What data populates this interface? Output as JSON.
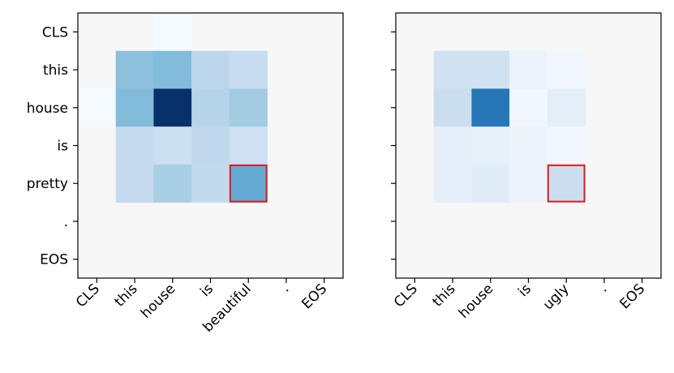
{
  "chart_data": [
    {
      "type": "heatmap",
      "title": "",
      "xlabel": "",
      "ylabel": "",
      "x_tick_labels": [
        "CLS",
        "this",
        "house",
        "is",
        "beautiful",
        ".",
        "EOS"
      ],
      "y_tick_labels": [
        "CLS",
        "this",
        "house",
        "is",
        "pretty",
        ".",
        "EOS"
      ],
      "colormap": "Blues",
      "background_color": "#f7f7f7",
      "values": [
        [
          0.0,
          0.0,
          0.01,
          0.0,
          0.0,
          0.0,
          0.0
        ],
        [
          0.0,
          0.42,
          0.44,
          0.28,
          0.24,
          0.0,
          0.0
        ],
        [
          0.01,
          0.44,
          1.0,
          0.3,
          0.36,
          0.0,
          0.0
        ],
        [
          0.0,
          0.25,
          0.22,
          0.27,
          0.21,
          0.0,
          0.0
        ],
        [
          0.0,
          0.25,
          0.34,
          0.26,
          0.52,
          0.0,
          0.0
        ],
        [
          0.0,
          0.0,
          0.0,
          0.0,
          0.0,
          0.0,
          0.0
        ],
        [
          0.0,
          0.0,
          0.0,
          0.0,
          0.0,
          0.0,
          0.0
        ]
      ],
      "highlight": {
        "row": 4,
        "col": 4,
        "color": "#e31a1c"
      }
    },
    {
      "type": "heatmap",
      "title": "",
      "xlabel": "",
      "ylabel": "",
      "x_tick_labels": [
        "CLS",
        "this",
        "house",
        "is",
        "ugly",
        ".",
        "EOS"
      ],
      "y_tick_labels": [
        "CLS",
        "this",
        "house",
        "is",
        "pretty",
        ".",
        "EOS"
      ],
      "show_y_tick_labels": false,
      "colormap": "Blues",
      "background_color": "#f7f7f7",
      "values": [
        [
          0.0,
          0.0,
          0.0,
          0.0,
          0.0,
          0.0,
          0.0
        ],
        [
          0.0,
          0.2,
          0.2,
          0.06,
          0.03,
          0.0,
          0.0
        ],
        [
          0.0,
          0.23,
          0.73,
          0.03,
          0.1,
          0.0,
          0.0
        ],
        [
          0.0,
          0.09,
          0.08,
          0.06,
          0.03,
          0.0,
          0.0
        ],
        [
          0.0,
          0.09,
          0.12,
          0.06,
          0.23,
          0.0,
          0.0
        ],
        [
          0.0,
          0.0,
          0.0,
          0.0,
          0.0,
          0.0,
          0.0
        ],
        [
          0.0,
          0.0,
          0.0,
          0.0,
          0.0,
          0.0,
          0.0
        ]
      ],
      "highlight": {
        "row": 4,
        "col": 4,
        "color": "#e31a1c"
      }
    }
  ]
}
